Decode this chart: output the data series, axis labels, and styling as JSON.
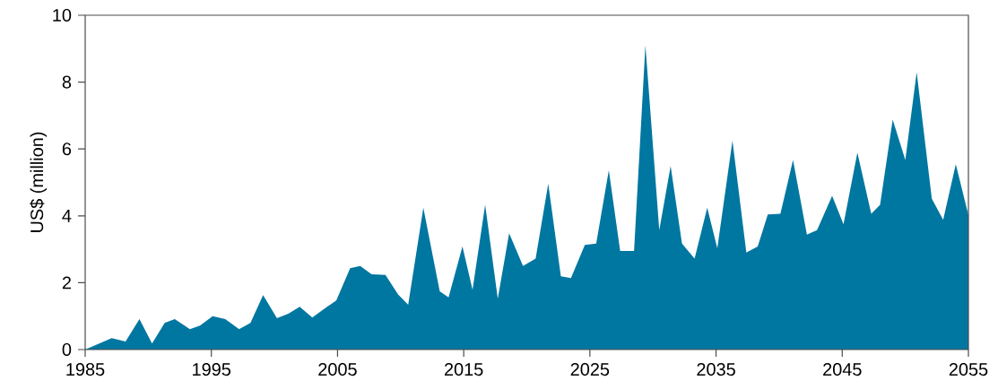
{
  "chart_data": {
    "type": "area",
    "ylabel": "US$ (million)",
    "x": [
      1985,
      1987.1,
      1988.2,
      1989.3,
      1990.3,
      1991.3,
      1992.1,
      1993.3,
      1994.1,
      1995.1,
      1996.1,
      1997.2,
      1998.1,
      1999.1,
      2000.2,
      2001.1,
      2002.0,
      2003.0,
      2004.0,
      2004.9,
      2006.0,
      2006.8,
      2007.7,
      2008.8,
      2009.8,
      2010.6,
      2011.8,
      2013.1,
      2013.8,
      2014.9,
      2015.7,
      2016.7,
      2017.7,
      2018.6,
      2019.7,
      2020.7,
      2021.7,
      2022.7,
      2023.5,
      2024.6,
      2025.5,
      2026.5,
      2027.4,
      2028.5,
      2029.4,
      2030.5,
      2031.4,
      2032.3,
      2033.3,
      2034.3,
      2035.1,
      2036.3,
      2037.4,
      2038.3,
      2039.1,
      2040.1,
      2041.1,
      2042.2,
      2043.0,
      2044.2,
      2045.1,
      2046.2,
      2047.3,
      2048.0,
      2049.0,
      2050.0,
      2050.9,
      2052.1,
      2053.0,
      2054.0,
      2055.0
    ],
    "values": [
      0,
      0.34,
      0.24,
      0.91,
      0.18,
      0.8,
      0.91,
      0.61,
      0.72,
      1.0,
      0.91,
      0.61,
      0.8,
      1.63,
      0.94,
      1.07,
      1.28,
      0.96,
      1.23,
      1.47,
      2.43,
      2.5,
      2.25,
      2.23,
      1.65,
      1.34,
      4.24,
      1.74,
      1.56,
      3.08,
      1.79,
      4.33,
      1.52,
      3.48,
      2.5,
      2.72,
      4.96,
      2.19,
      2.14,
      3.13,
      3.17,
      5.36,
      2.95,
      2.95,
      9.1,
      3.57,
      5.49,
      3.17,
      2.72,
      4.24,
      3.03,
      6.25,
      2.9,
      3.08,
      4.04,
      4.06,
      5.67,
      3.44,
      3.57,
      4.6,
      3.75,
      5.89,
      4.06,
      4.33,
      6.88,
      5.67,
      8.3,
      4.51,
      3.88,
      5.54,
      4.02
    ],
    "color": "#0077a0",
    "xlim": [
      1985,
      2055
    ],
    "xticks": [
      1985,
      1995,
      2005,
      2015,
      2025,
      2035,
      2045,
      2055
    ],
    "ylim": [
      0,
      10
    ],
    "yticks": [
      0,
      2,
      4,
      6,
      8,
      10
    ]
  }
}
